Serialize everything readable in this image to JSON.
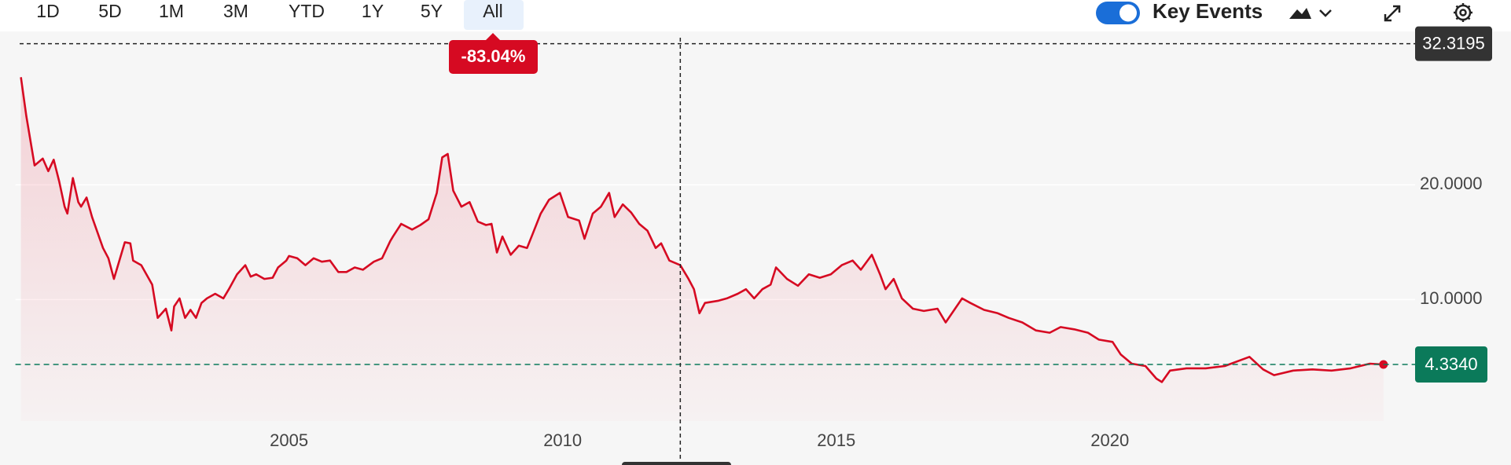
{
  "toolbar": {
    "ranges": [
      "1D",
      "5D",
      "1M",
      "3M",
      "YTD",
      "1Y",
      "5Y",
      "All"
    ],
    "selected": 7,
    "key_events": "Key Events"
  },
  "chart_data": {
    "type": "line",
    "change_label": "-83.04%",
    "crosshair": {
      "x": 2012.15,
      "value": 32.3195
    },
    "last_price": {
      "value": 4.334,
      "label": "4.3340"
    },
    "color": "#d60a22",
    "xlim": [
      2000,
      2025.5
    ],
    "xticks": [
      2005,
      2010,
      2015,
      2020
    ],
    "ylim": [
      -0.6,
      32.4
    ],
    "yticks": [
      {
        "value": 10,
        "label": "10.0000"
      },
      {
        "value": 20,
        "label": "20.0000"
      }
    ],
    "grid": true,
    "x": [
      2000.1,
      2000.2,
      2000.35,
      2000.5,
      2000.6,
      2000.7,
      2000.8,
      2000.9,
      2000.95,
      2001.05,
      2001.15,
      2001.2,
      2001.3,
      2001.4,
      2001.6,
      2001.7,
      2001.8,
      2002.0,
      2002.1,
      2002.15,
      2002.3,
      2002.5,
      2002.6,
      2002.75,
      2002.85,
      2002.9,
      2003.0,
      2003.1,
      2003.2,
      2003.3,
      2003.4,
      2003.5,
      2003.65,
      2003.8,
      2003.9,
      2004.05,
      2004.2,
      2004.3,
      2004.4,
      2004.55,
      2004.7,
      2004.8,
      2004.95,
      2005.0,
      2005.15,
      2005.3,
      2005.45,
      2005.6,
      2005.75,
      2005.9,
      2006.05,
      2006.2,
      2006.35,
      2006.55,
      2006.7,
      2006.85,
      2006.9,
      2007.05,
      2007.25,
      2007.4,
      2007.55,
      2007.7,
      2007.8,
      2007.9,
      2008.0,
      2008.15,
      2008.3,
      2008.45,
      2008.6,
      2008.7,
      2008.8,
      2008.9,
      2009.05,
      2009.2,
      2009.35,
      2009.45,
      2009.6,
      2009.75,
      2009.95,
      2010.1,
      2010.3,
      2010.4,
      2010.55,
      2010.7,
      2010.85,
      2010.95,
      2011.1,
      2011.25,
      2011.4,
      2011.55,
      2011.7,
      2011.8,
      2011.95,
      2012.15,
      2012.3,
      2012.4,
      2012.5,
      2012.6,
      2012.85,
      2013.0,
      2013.2,
      2013.35,
      2013.5,
      2013.65,
      2013.8,
      2013.9,
      2014.1,
      2014.3,
      2014.5,
      2014.7,
      2014.9,
      2015.1,
      2015.3,
      2015.45,
      2015.65,
      2015.8,
      2015.9,
      2016.05,
      2016.2,
      2016.4,
      2016.6,
      2016.85,
      2017.0,
      2017.3,
      2017.45,
      2017.7,
      2017.95,
      2018.15,
      2018.4,
      2018.65,
      2018.9,
      2019.1,
      2019.35,
      2019.6,
      2019.8,
      2020.05,
      2020.2,
      2020.4,
      2020.65,
      2020.85,
      2020.95,
      2021.1,
      2021.4,
      2021.75,
      2022.1,
      2022.55,
      2022.8,
      2023.0,
      2023.35,
      2023.7,
      2024.05,
      2024.4,
      2024.75,
      2025.0
    ],
    "series": [
      {
        "name": "Price",
        "color": "#d60a22",
        "values": [
          29.4,
          26.0,
          21.7,
          22.3,
          21.2,
          22.2,
          20.3,
          18.1,
          17.5,
          20.6,
          18.5,
          18.1,
          18.9,
          17.2,
          14.5,
          13.6,
          11.8,
          15.0,
          14.9,
          13.4,
          13.0,
          11.3,
          8.4,
          9.2,
          7.3,
          9.4,
          10.1,
          8.4,
          9.1,
          8.4,
          9.7,
          10.1,
          10.5,
          10.1,
          10.9,
          12.2,
          13.0,
          12.0,
          12.2,
          11.8,
          11.9,
          12.8,
          13.4,
          13.8,
          13.6,
          13.0,
          13.6,
          13.3,
          13.4,
          12.4,
          12.4,
          12.8,
          12.6,
          13.3,
          13.6,
          15.1,
          15.5,
          16.6,
          16.1,
          16.5,
          17.0,
          19.3,
          22.4,
          22.7,
          19.5,
          18.1,
          18.5,
          16.8,
          16.5,
          16.6,
          14.1,
          15.5,
          13.9,
          14.7,
          14.5,
          15.7,
          17.5,
          18.7,
          19.3,
          17.2,
          16.9,
          15.3,
          17.5,
          18.1,
          19.3,
          17.2,
          18.3,
          17.6,
          16.6,
          16.0,
          14.5,
          14.9,
          13.4,
          13.0,
          11.8,
          10.9,
          8.8,
          9.7,
          9.9,
          10.1,
          10.5,
          10.9,
          10.1,
          10.9,
          11.3,
          12.8,
          11.8,
          11.2,
          12.2,
          11.9,
          12.2,
          13.0,
          13.4,
          12.6,
          13.9,
          12.2,
          10.9,
          11.8,
          10.1,
          9.2,
          9.0,
          9.2,
          8.0,
          10.1,
          9.7,
          9.1,
          8.8,
          8.4,
          8.0,
          7.3,
          7.1,
          7.6,
          7.4,
          7.1,
          6.5,
          6.3,
          5.2,
          4.4,
          4.2,
          3.1,
          2.8,
          3.8,
          4.0,
          4.0,
          4.2,
          5.0,
          3.9,
          3.4,
          3.8,
          3.9,
          3.8,
          4.0,
          4.4,
          4.334
        ]
      }
    ]
  }
}
